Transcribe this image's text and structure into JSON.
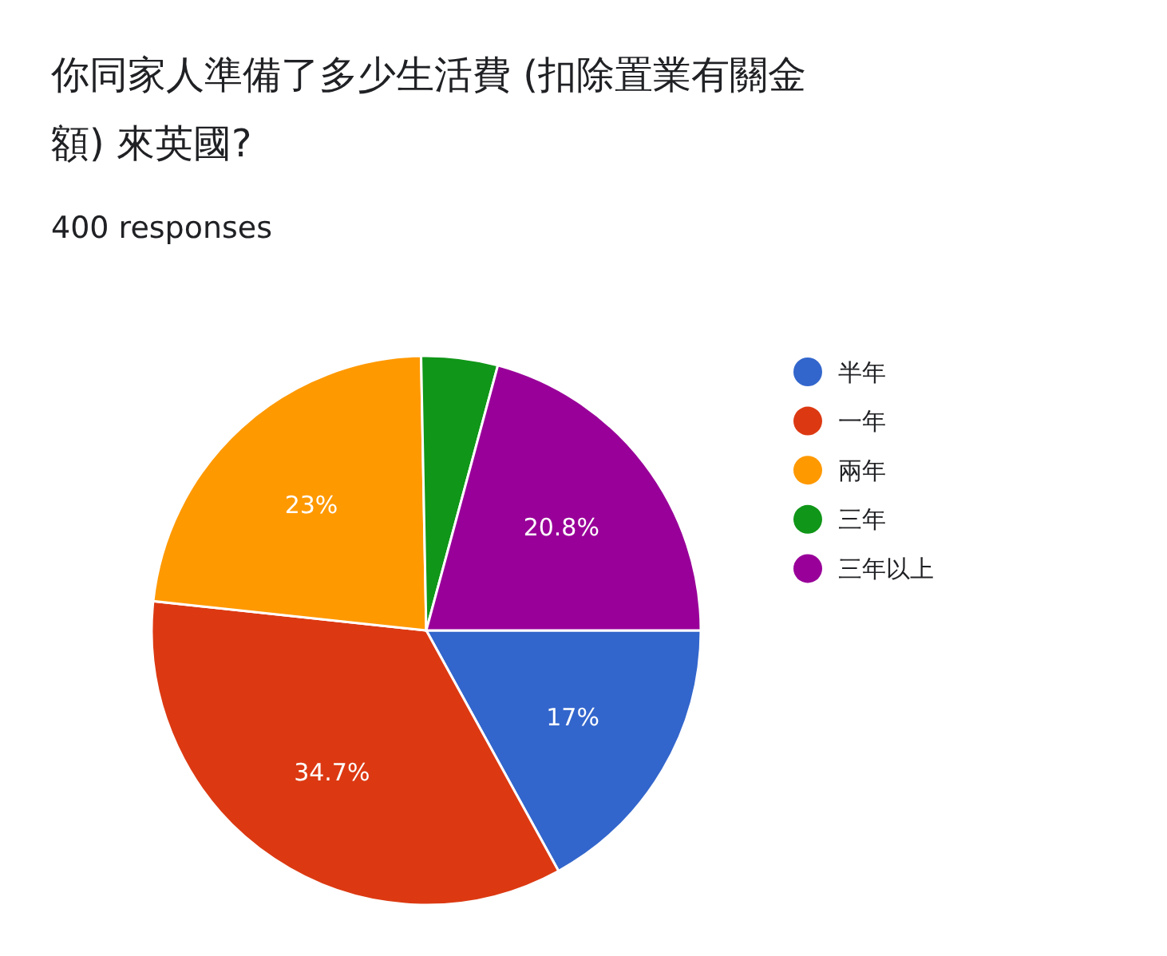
{
  "chart_data": {
    "type": "pie",
    "title": "你同家人準備了多少生活費 (扣除置業有關金額) 來英國?",
    "subtitle": "400 responses",
    "categories": [
      "半年",
      "一年",
      "兩年",
      "三年",
      "三年以上"
    ],
    "values": [
      17,
      34.7,
      23,
      4.5,
      20.8
    ],
    "colors": [
      "#3366cc",
      "#dc3912",
      "#ff9900",
      "#109618",
      "#990099"
    ],
    "value_labels": [
      "17%",
      "34.7%",
      "23%",
      null,
      "20.8%"
    ],
    "legend": "right"
  }
}
